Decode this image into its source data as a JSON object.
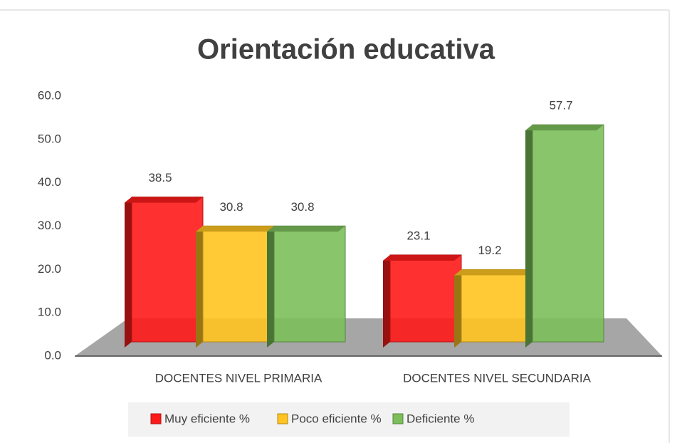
{
  "chart_data": {
    "type": "bar3d",
    "title": "Orientación educativa",
    "categories": [
      "DOCENTES NIVEL PRIMARIA",
      "DOCENTES NIVEL SECUNDARIA"
    ],
    "series": [
      {
        "name": "Muy eficiente %",
        "color": "#ff1a1a",
        "values": [
          38.5,
          23.1
        ]
      },
      {
        "name": "Poco eficiente %",
        "color": "#ffc420",
        "values": [
          30.8,
          19.2
        ]
      },
      {
        "name": "Deficiente %",
        "color": "#7cbf5a",
        "values": [
          30.8,
          57.7
        ]
      }
    ],
    "ylim": [
      0,
      60
    ],
    "yticks": [
      {
        "value": 0,
        "label": "0.0"
      },
      {
        "value": 10,
        "label": "10.0"
      },
      {
        "value": 20,
        "label": "20.0"
      },
      {
        "value": 30,
        "label": "30.0"
      },
      {
        "value": 40,
        "label": "40.0"
      },
      {
        "value": 50,
        "label": "50.0"
      },
      {
        "value": 60,
        "label": "60.0"
      }
    ],
    "legend": "bottom"
  }
}
